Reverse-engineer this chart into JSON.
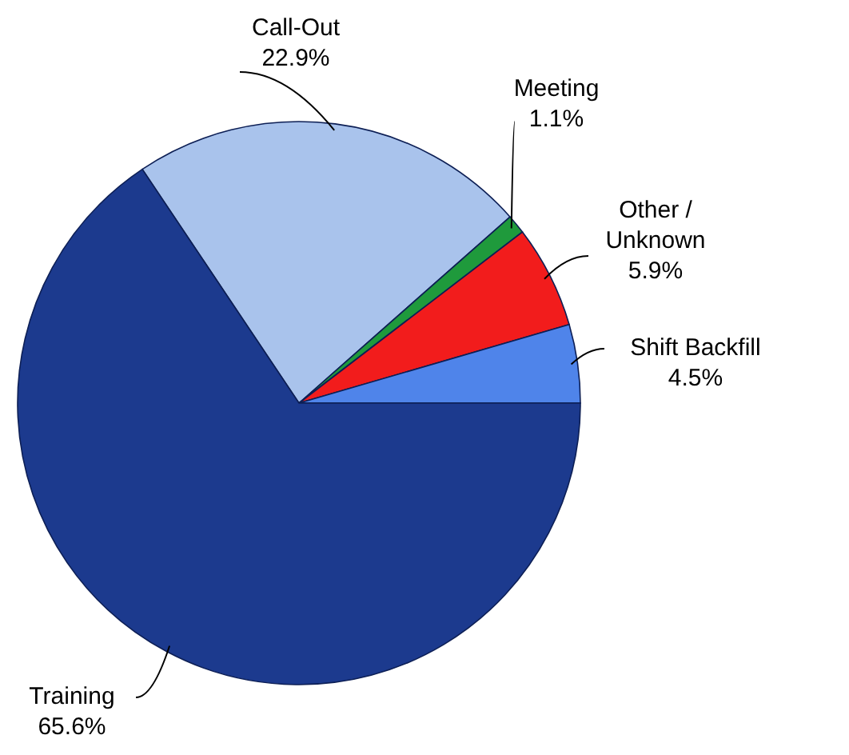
{
  "chart_data": {
    "type": "pie",
    "categories": [
      "Call-Out",
      "Meeting",
      "Other / Unknown",
      "Shift Backfill",
      "Training"
    ],
    "values": [
      22.9,
      1.1,
      5.9,
      4.5,
      65.6
    ],
    "value_labels": [
      "22.9%",
      "1.1%",
      "5.9%",
      "4.5%",
      "65.6%"
    ],
    "colors": [
      "#a9c3ec",
      "#1f9a3c",
      "#f21c1c",
      "#4f84ea",
      "#1c3a8e"
    ]
  }
}
